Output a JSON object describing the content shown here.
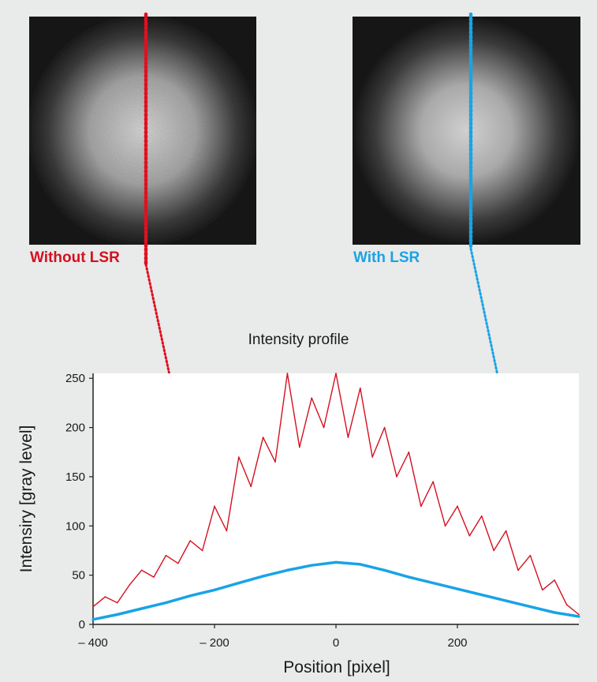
{
  "images": {
    "left_caption": "Without LSR",
    "right_caption": "With LSR"
  },
  "colors": {
    "background": "#e9eaea",
    "without_lsr": "#d4101e",
    "with_lsr": "#19a3e6",
    "image_bg": "#161616"
  },
  "chart_data": {
    "type": "line",
    "title": "Intensity profile",
    "xlabel": "Position [pixel]",
    "ylabel": "Intensiry [gray level]",
    "xlim": [
      -400,
      400
    ],
    "ylim": [
      0,
      255
    ],
    "xticks": [
      -400,
      -200,
      0,
      200
    ],
    "xtick_labels": [
      "– 400",
      "– 200",
      "0",
      "200"
    ],
    "yticks": [
      0,
      50,
      100,
      150,
      200,
      250
    ],
    "ytick_labels": [
      "0",
      "50",
      "100",
      "150",
      "200",
      "250"
    ],
    "series": [
      {
        "name": "Without LSR",
        "color": "#d4101e",
        "x": [
          -400,
          -380,
          -360,
          -340,
          -320,
          -300,
          -280,
          -260,
          -240,
          -220,
          -200,
          -180,
          -160,
          -140,
          -120,
          -100,
          -80,
          -60,
          -40,
          -20,
          0,
          20,
          40,
          60,
          80,
          100,
          120,
          140,
          160,
          180,
          200,
          220,
          240,
          260,
          280,
          300,
          320,
          340,
          360,
          380,
          400
        ],
        "y": [
          18,
          28,
          22,
          40,
          55,
          48,
          70,
          62,
          85,
          75,
          120,
          95,
          170,
          140,
          190,
          165,
          255,
          180,
          230,
          200,
          255,
          190,
          240,
          170,
          200,
          150,
          175,
          120,
          145,
          100,
          120,
          90,
          110,
          75,
          95,
          55,
          70,
          35,
          45,
          20,
          10
        ]
      },
      {
        "name": "With LSR",
        "color": "#19a3e6",
        "x": [
          -400,
          -360,
          -320,
          -280,
          -240,
          -200,
          -160,
          -120,
          -80,
          -40,
          0,
          40,
          80,
          120,
          160,
          200,
          240,
          280,
          320,
          360,
          400
        ],
        "y": [
          5,
          10,
          16,
          22,
          29,
          35,
          42,
          49,
          55,
          60,
          63,
          61,
          55,
          48,
          42,
          36,
          30,
          24,
          18,
          12,
          8
        ]
      }
    ]
  }
}
